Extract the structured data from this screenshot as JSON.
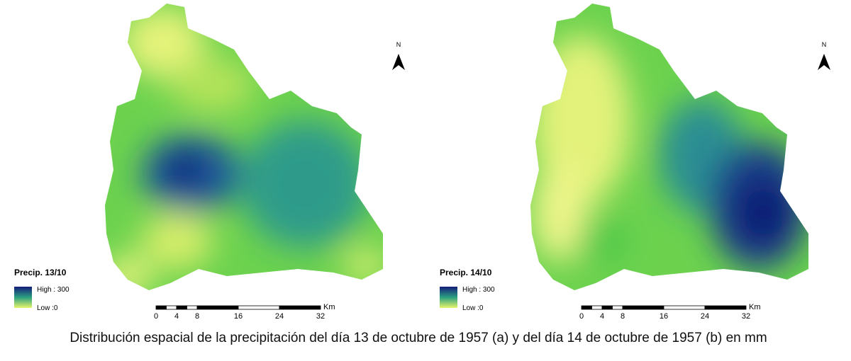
{
  "maps": [
    {
      "north": "N",
      "legend_title": "Precip. 13/10",
      "legend_high": "High : 300",
      "legend_low": "Low :0",
      "scale_ticks": [
        0,
        4,
        8,
        16,
        24,
        32
      ],
      "scale_unit": "Km"
    },
    {
      "north": "N",
      "legend_title": "Precip. 14/10",
      "legend_high": "High : 300",
      "legend_low": "Low :0",
      "scale_ticks": [
        0,
        4,
        8,
        16,
        24,
        32
      ],
      "scale_unit": "Km"
    }
  ],
  "caption": "Distribución espacial de la precipitación del día 13 de octubre de 1957 (a) y del día 14 de octubre de 1957 (b) en mm"
}
